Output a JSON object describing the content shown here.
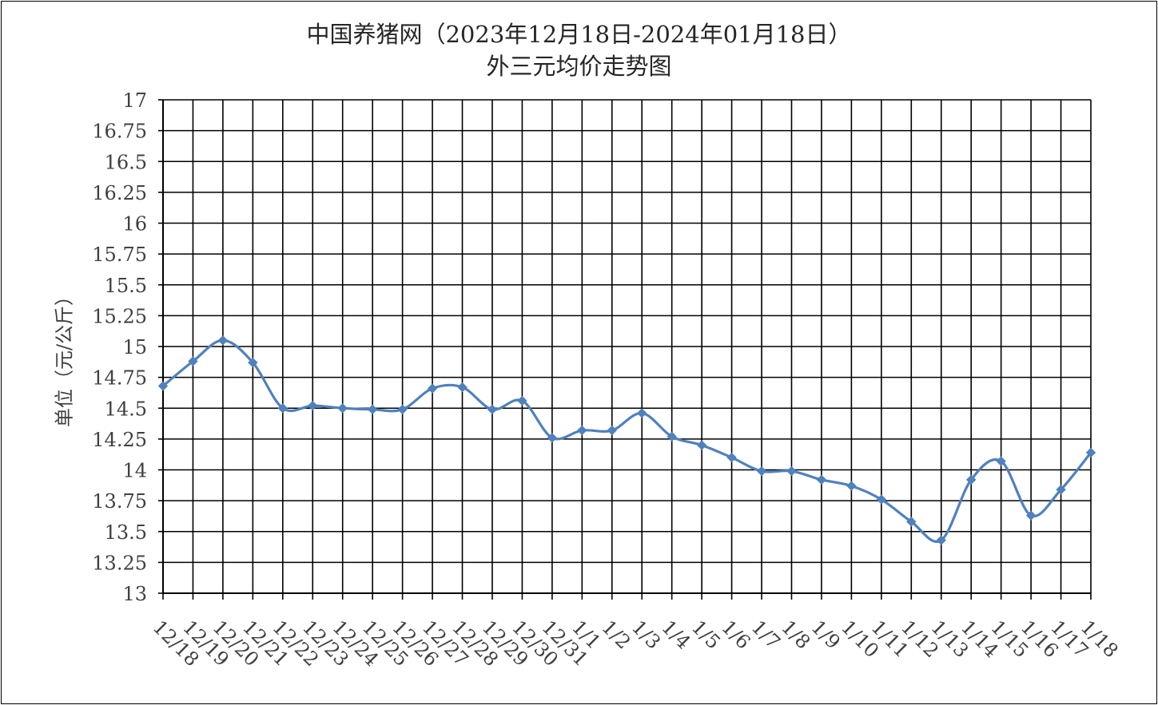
{
  "chart_data": {
    "type": "line",
    "title": "中国养猪网（2023年12月18日-2024年01月18日）",
    "subtitle": "外三元均价走势图",
    "ylabel": "单位（元/公斤）",
    "xlabel": "",
    "ylim": [
      13,
      17
    ],
    "ytick_step": 0.25,
    "yticks": [
      "13",
      "13.25",
      "13.5",
      "13.75",
      "14",
      "14.25",
      "14.5",
      "14.75",
      "15",
      "15.25",
      "15.5",
      "15.75",
      "16",
      "16.25",
      "16.5",
      "16.75",
      "17"
    ],
    "grid": true,
    "legend": "none",
    "categories": [
      "12/18",
      "12/19",
      "12/20",
      "12/21",
      "12/22",
      "12/23",
      "12/24",
      "12/25",
      "12/26",
      "12/27",
      "12/28",
      "12/29",
      "12/30",
      "12/31",
      "1/1",
      "1/2",
      "1/3",
      "1/4",
      "1/5",
      "1/6",
      "1/7",
      "1/8",
      "1/9",
      "1/10",
      "1/11",
      "1/12",
      "1/13",
      "1/14",
      "1/15",
      "1/16",
      "1/17",
      "1/18"
    ],
    "series": [
      {
        "name": "",
        "color": "#4f81bd",
        "values": [
          14.68,
          14.88,
          15.05,
          14.87,
          14.5,
          14.52,
          14.5,
          14.49,
          14.49,
          14.66,
          14.67,
          14.49,
          14.56,
          14.26,
          14.32,
          14.32,
          14.46,
          14.27,
          14.2,
          14.1,
          13.99,
          13.99,
          13.92,
          13.87,
          13.76,
          13.58,
          13.43,
          13.92,
          14.07,
          13.63,
          13.84,
          14.14
        ]
      }
    ]
  }
}
